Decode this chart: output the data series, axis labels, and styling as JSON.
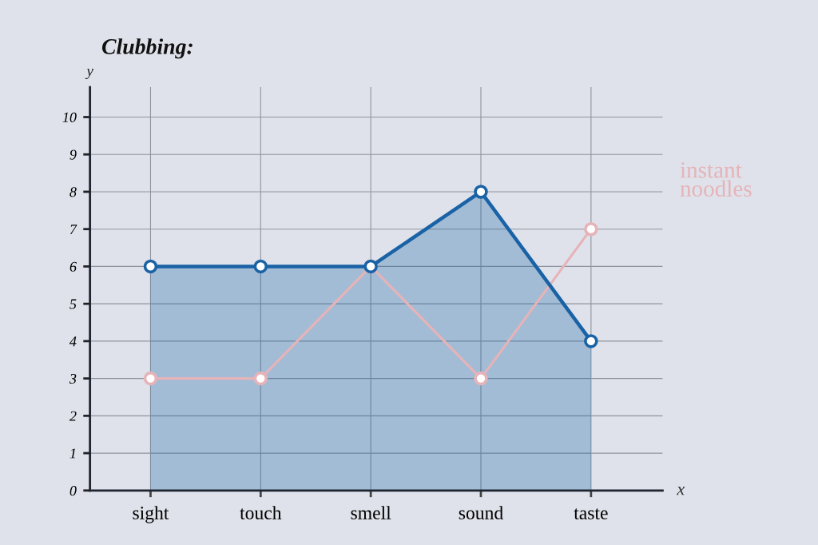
{
  "chart_data": {
    "type": "area",
    "title": "Clubbing:",
    "xlabel": "x",
    "ylabel": "y",
    "categories": [
      "sight",
      "touch",
      "smell",
      "sound",
      "taste"
    ],
    "series": [
      {
        "color": "#1a62a6",
        "values": [
          6,
          6,
          6,
          8,
          4
        ]
      },
      {
        "type": "line",
        "name": "instant noodles",
        "color": "#e6b3b8",
        "values": [
          3,
          3,
          6,
          3,
          7
        ]
      }
    ],
    "ylim": [
      0,
      10.8
    ],
    "yticks": [
      0,
      1,
      2,
      3,
      4,
      5,
      6,
      7,
      8,
      9,
      10
    ],
    "grid": true,
    "marker": "circle",
    "line_style": "solid"
  }
}
